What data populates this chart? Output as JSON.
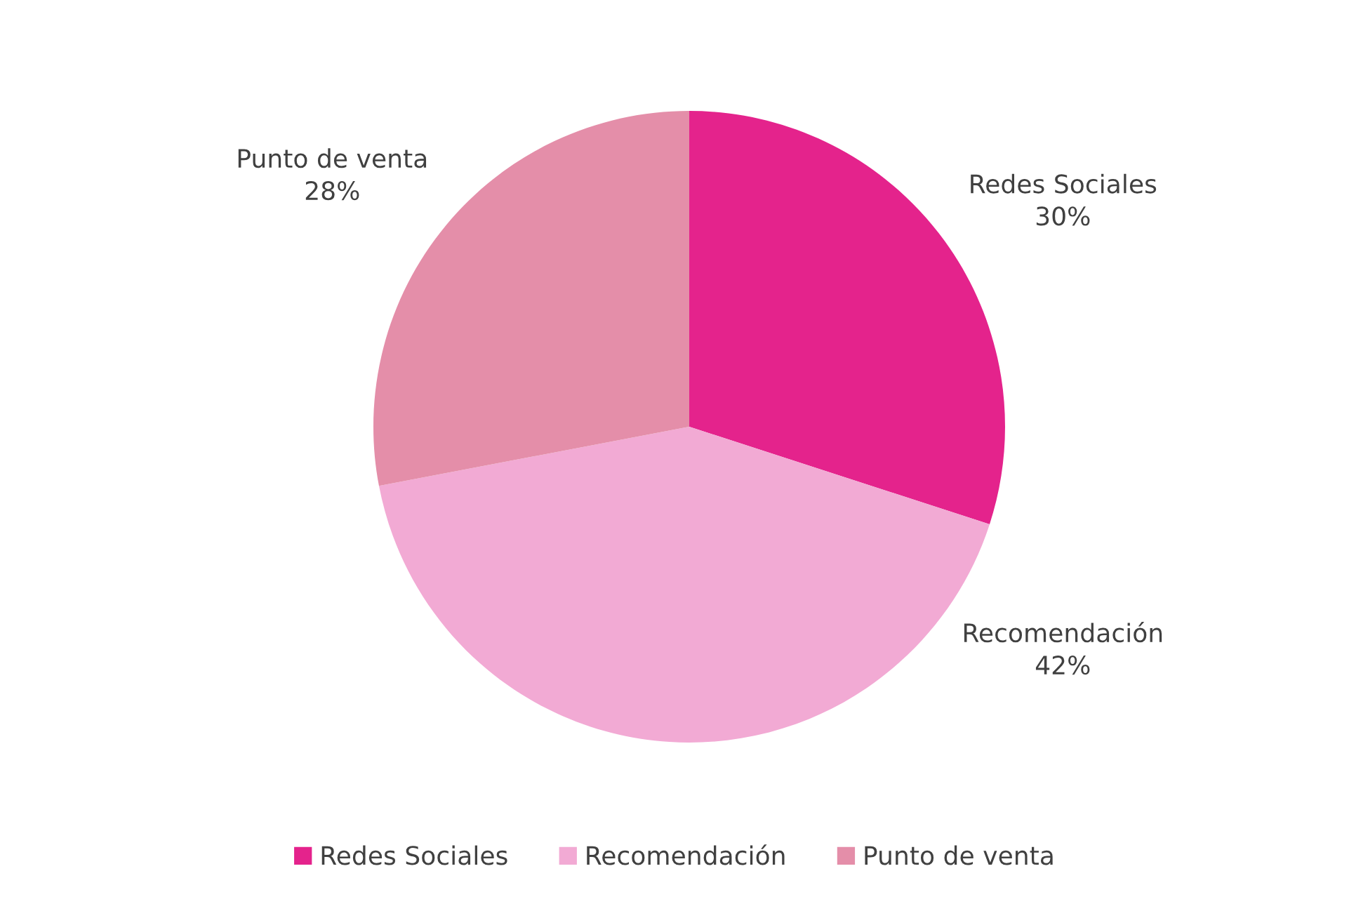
{
  "chart_data": {
    "type": "pie",
    "categories": [
      "Redes Sociales",
      "Recomendación",
      "Punto de venta"
    ],
    "values": [
      30,
      42,
      28
    ],
    "value_labels": [
      "30%",
      "42%",
      "28%"
    ],
    "colors": [
      "#e4238c",
      "#f2aad4",
      "#e48ea9"
    ],
    "legend": "bottom"
  }
}
